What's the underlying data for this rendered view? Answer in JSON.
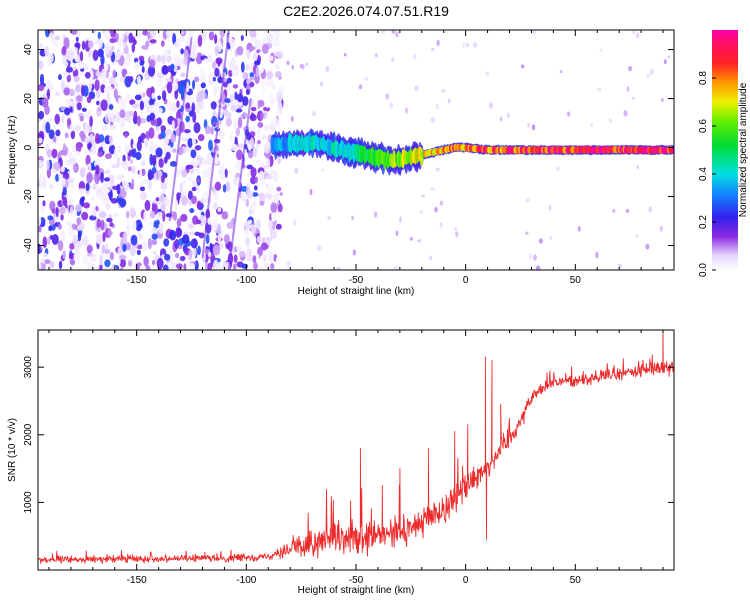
{
  "title": "C2E2.2026.074.07.51.R19",
  "colors": {
    "snr_line": "#ee2a2a",
    "ridge": "#ff2a55",
    "background": "#ffffff"
  },
  "chart_data": [
    {
      "type": "heatmap",
      "name": "spectrogram",
      "xlabel": "Height of straight line (km)",
      "ylabel": "Frequency (Hz)",
      "xlim": [
        -195,
        95
      ],
      "ylim": [
        -50,
        48
      ],
      "xticks": [
        -150,
        -100,
        -50,
        0,
        50
      ],
      "yticks": [
        -40,
        -20,
        0,
        20,
        40
      ],
      "colorbar": {
        "label": "Normalized spectral amplitude",
        "range": [
          0,
          1
        ],
        "ticks": [
          0.0,
          0.2,
          0.4,
          0.6,
          0.8
        ],
        "tick_labels": [
          "0.0",
          "0.2",
          "0.4",
          "0.6",
          "0.8"
        ],
        "colormap": "white-purple-blue-cyan-green-yellow-red-magenta"
      },
      "regions": [
        {
          "description": "broadband noise",
          "x_range": [
            -195,
            -88
          ],
          "f_range": [
            -50,
            48
          ],
          "amplitude_range": [
            0.0,
            0.25
          ]
        },
        {
          "description": "carrier onset",
          "x_range": [
            -88,
            -40
          ],
          "center_freq_hz": 1,
          "amplitude_range": [
            0.3,
            0.6
          ]
        },
        {
          "description": "carrier dip",
          "x_range": [
            -40,
            -20
          ],
          "center_freq_hz": -5,
          "amplitude_range": [
            0.5,
            0.8
          ]
        },
        {
          "description": "steady carrier",
          "x_range": [
            -20,
            95
          ],
          "center_freq_hz": -1,
          "amplitude_range": [
            0.8,
            1.0
          ]
        }
      ],
      "ridge_profile": {
        "x": [
          -88,
          -70,
          -60,
          -50,
          -45,
          -40,
          -35,
          -30,
          -25,
          -20,
          -15,
          -10,
          -5,
          0,
          10,
          20,
          30,
          50,
          70,
          95
        ],
        "freq_hz": [
          1,
          2,
          0,
          -2,
          -3,
          -4,
          -5,
          -5,
          -4,
          -3,
          -2,
          -1,
          0,
          0,
          -1,
          -1,
          -1,
          -1,
          -1,
          -1
        ],
        "amplitude": [
          0.35,
          0.45,
          0.45,
          0.5,
          0.55,
          0.6,
          0.65,
          0.7,
          0.72,
          0.75,
          0.8,
          0.85,
          0.88,
          0.9,
          0.92,
          0.95,
          0.97,
          1.0,
          1.0,
          1.0
        ]
      }
    },
    {
      "type": "line",
      "name": "snr",
      "xlabel": "Height of straight line (km)",
      "ylabel": "SNR (10 * v/v)",
      "xlim": [
        -195,
        95
      ],
      "ylim": [
        0,
        3550
      ],
      "xticks": [
        -150,
        -100,
        -50,
        0,
        50
      ],
      "yticks": [
        1000,
        2000,
        3000
      ],
      "series": [
        {
          "name": "SNR",
          "color": "#ee2a2a",
          "x": [
            -195,
            -170,
            -140,
            -110,
            -90,
            -80,
            -70,
            -60,
            -50,
            -40,
            -30,
            -20,
            -10,
            0,
            10,
            20,
            25,
            30,
            35,
            40,
            50,
            60,
            70,
            80,
            90,
            95
          ],
          "mean": [
            150,
            160,
            170,
            170,
            200,
            320,
            380,
            450,
            420,
            500,
            560,
            700,
            900,
            1250,
            1550,
            1950,
            2200,
            2550,
            2700,
            2780,
            2800,
            2850,
            2900,
            2950,
            3000,
            3050
          ],
          "noise_amplitude": [
            90,
            90,
            90,
            90,
            100,
            280,
            400,
            400,
            450,
            450,
            400,
            400,
            420,
            380,
            350,
            300,
            250,
            180,
            150,
            150,
            170,
            180,
            190,
            200,
            220,
            220
          ],
          "spikes": [
            {
              "x": -48,
              "value": 1800
            },
            {
              "x": -38,
              "value": 1250
            },
            {
              "x": -30,
              "value": 1500
            },
            {
              "x": -17,
              "value": 1800
            },
            {
              "x": -5,
              "value": 2050
            },
            {
              "x": 1,
              "value": 2150
            },
            {
              "x": 9,
              "value": 3150
            },
            {
              "x": 9.5,
              "value": 450
            },
            {
              "x": 12,
              "value": 3100
            },
            {
              "x": 13,
              "value": 1500
            },
            {
              "x": 16,
              "value": 2450
            },
            {
              "x": 90,
              "value": 3550
            }
          ]
        }
      ]
    }
  ]
}
